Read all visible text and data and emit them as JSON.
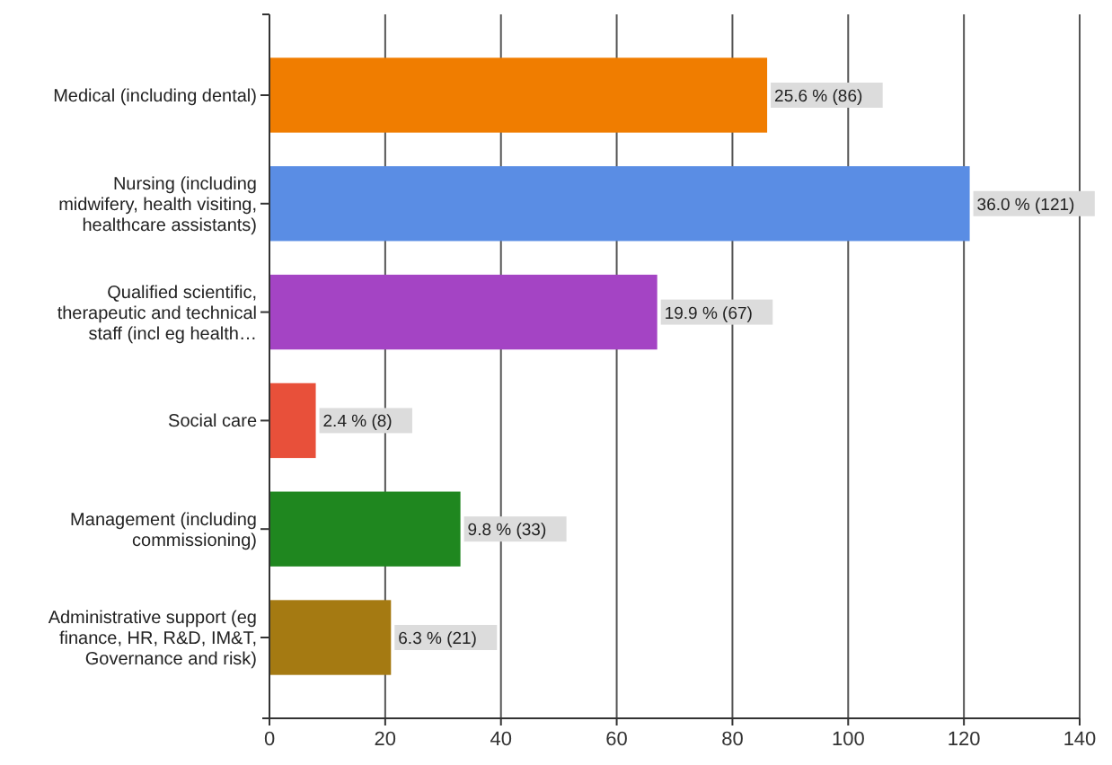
{
  "chart_data": {
    "type": "bar",
    "orientation": "horizontal",
    "categories": [
      "Medical (including dental)",
      "Nursing (including midwifery, health visiting, healthcare assistants)",
      "Qualified scientific, therapeutic and technical staff (incl eg health…",
      "Social care",
      "Management (including commissioning)",
      "Administrative support (eg finance, HR, R&D, IM&T, Governance and risk)"
    ],
    "values": [
      86,
      121,
      67,
      8,
      33,
      21
    ],
    "colors": [
      "#f07d00",
      "#5a8de4",
      "#a444c4",
      "#e8503a",
      "#1f871f",
      "#a57a12"
    ],
    "value_labels": [
      "25.6 % (86)",
      "36.0 % (121)",
      "19.9 % (67)",
      "2.4 % (8)",
      "9.8 % (33)",
      "6.3 % (21)"
    ],
    "xlim": [
      0,
      140
    ],
    "xticks": [
      0,
      20,
      40,
      60,
      80,
      100,
      120,
      140
    ],
    "grid": "x"
  }
}
